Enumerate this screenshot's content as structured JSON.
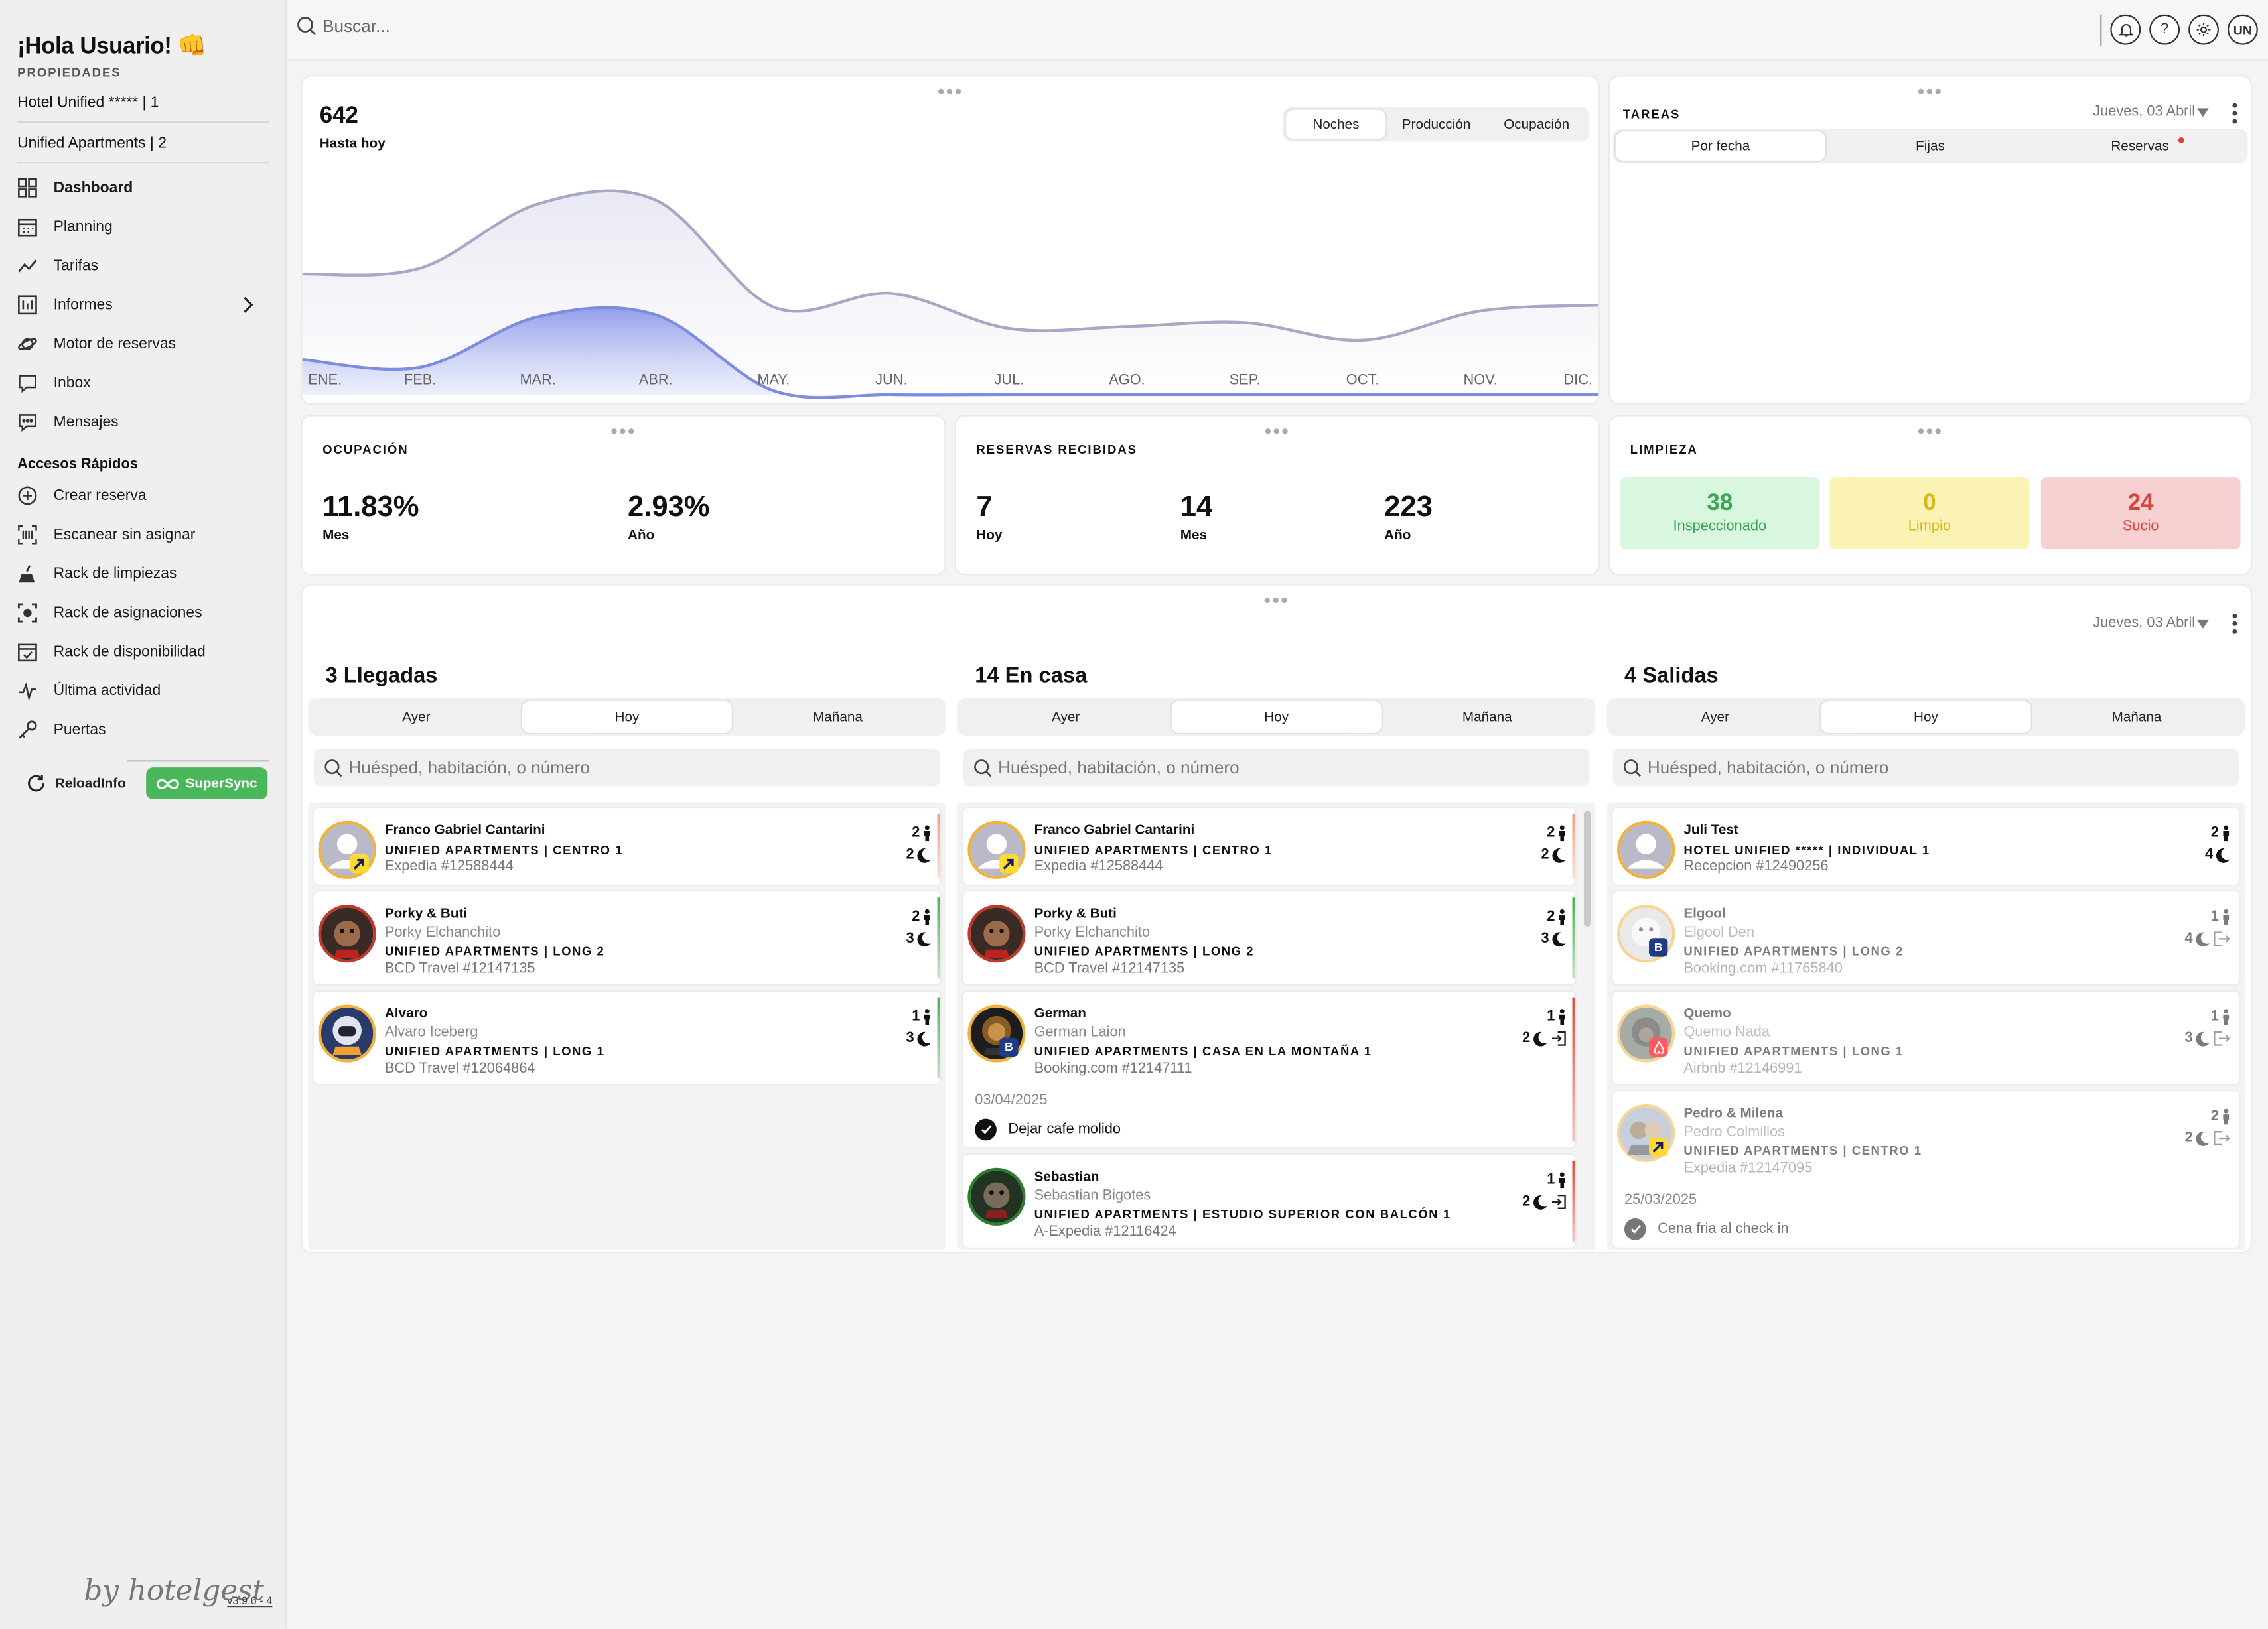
{
  "sidebar": {
    "greeting": "¡Hola Usuario! 👊",
    "properties_title": "PROPIEDADES",
    "properties": [
      "Hotel Unified ***** | 1",
      "Unified Apartments | 2"
    ],
    "nav": [
      {
        "label": "Dashboard",
        "icon": "grid-icon",
        "active": true
      },
      {
        "label": "Planning",
        "icon": "calendar-icon"
      },
      {
        "label": "Tarifas",
        "icon": "trend-icon"
      },
      {
        "label": "Informes",
        "icon": "report-icon"
      },
      {
        "label": "Motor de reservas",
        "icon": "planet-icon"
      },
      {
        "label": "Inbox",
        "icon": "inbox-icon"
      },
      {
        "label": "Mensajes",
        "icon": "chat-icon"
      }
    ],
    "quick_title": "Accesos Rápidos",
    "quick": [
      {
        "label": "Crear reserva",
        "icon": "plus-circle-icon"
      },
      {
        "label": "Escanear sin asignar",
        "icon": "barcode-icon"
      },
      {
        "label": "Rack de limpiezas",
        "icon": "broom-icon"
      },
      {
        "label": "Rack de asignaciones",
        "icon": "focus-icon"
      },
      {
        "label": "Rack de disponibilidad",
        "icon": "calendar-check-icon"
      },
      {
        "label": "Última actividad",
        "icon": "activity-icon"
      },
      {
        "label": "Puertas",
        "icon": "key-icon"
      }
    ],
    "reload_label": "ReloadInfo",
    "sync_label": "SuperSync",
    "brand": "by hotelgest",
    "version": "v3.9.6 - 4"
  },
  "topbar": {
    "search_placeholder": "Buscar...",
    "user_initials": "UN",
    "help_glyph": "?"
  },
  "chart": {
    "total": "642",
    "total_label": "Hasta hoy",
    "tabs": [
      "Noches",
      "Producción",
      "Ocupación"
    ],
    "selected_tab": "Noches"
  },
  "chart_data": {
    "type": "area",
    "categories": [
      "ENE.",
      "FEB.",
      "MAR.",
      "ABR.",
      "MAY.",
      "JUN.",
      "JUL.",
      "AGO.",
      "SEP.",
      "OCT.",
      "NOV.",
      "DIC."
    ],
    "series": [
      {
        "values": [
          62,
          65,
          98,
          100,
          45,
          52,
          34,
          35,
          37,
          28,
          43,
          46
        ],
        "color": "#a7a7c6"
      },
      {
        "values": [
          18,
          14,
          40,
          41,
          2,
          0,
          0,
          0,
          0,
          0,
          0,
          0
        ],
        "color": "#7c8ce0"
      }
    ],
    "ylim": [
      0,
      110
    ]
  },
  "tasks": {
    "title": "TAREAS",
    "date": "Jueves, 03 Abril",
    "tabs": [
      "Por fecha",
      "Fijas",
      "Reservas"
    ],
    "selected_tab": "Por fecha"
  },
  "occupancy": {
    "title": "OCUPACIÓN",
    "items": [
      {
        "value": "11.83%",
        "label": "Mes"
      },
      {
        "value": "2.93%",
        "label": "Año"
      }
    ]
  },
  "bookings": {
    "title": "RESERVAS RECIBIDAS",
    "items": [
      {
        "value": "7",
        "label": "Hoy"
      },
      {
        "value": "14",
        "label": "Mes"
      },
      {
        "value": "223",
        "label": "Año"
      }
    ]
  },
  "cleaning": {
    "title": "LIMPIEZA",
    "items": [
      {
        "value": "38",
        "label": "Inspeccionado",
        "bg": "#d9f6de",
        "fg": "#3aa557"
      },
      {
        "value": "0",
        "label": "Limpio",
        "bg": "#fbf3b4",
        "fg": "#d4b81a"
      },
      {
        "value": "24",
        "label": "Sucio",
        "bg": "#f7d1d1",
        "fg": "#d9433c"
      }
    ]
  },
  "movements": {
    "date": "Jueves, 03 Abril",
    "day_tabs": [
      "Ayer",
      "Hoy",
      "Mañana"
    ],
    "search_placeholder": "Huésped, habitación, o número",
    "columns": [
      {
        "title": "3 Llegadas",
        "guests": [
          {
            "name": "Franco Gabriel Cantarini",
            "sub": "",
            "room": "UNIFIED APARTMENTS | CENTRO 1",
            "source": "Expedia #12588444",
            "pax": "2",
            "nights": "2",
            "avatar": "default-avatar",
            "badge": "expedia-badge",
            "edge": "#f1a07a"
          },
          {
            "name": "Porky & Buti",
            "sub": "Porky Elchanchito",
            "room": "UNIFIED APARTMENTS | LONG 2",
            "source": "BCD Travel #12147135",
            "pax": "2",
            "nights": "3",
            "avatar": "dog-avatar",
            "badge": "",
            "edge": "#4caf50"
          },
          {
            "name": "Alvaro",
            "sub": "Alvaro Iceberg",
            "room": "UNIFIED APARTMENTS | LONG 1",
            "source": "BCD Travel #12064864",
            "pax": "1",
            "nights": "3",
            "avatar": "astronaut-avatar",
            "badge": "",
            "edge": "#4caf50"
          }
        ]
      },
      {
        "title": "14 En casa",
        "guests": [
          {
            "name": "Franco Gabriel Cantarini",
            "sub": "",
            "room": "UNIFIED APARTMENTS | CENTRO 1",
            "source": "Expedia #12588444",
            "pax": "2",
            "nights": "2",
            "avatar": "default-avatar",
            "badge": "expedia-badge",
            "edge": "#f1a07a"
          },
          {
            "name": "Porky & Buti",
            "sub": "Porky Elchanchito",
            "room": "UNIFIED APARTMENTS | LONG 2",
            "source": "BCD Travel #12147135",
            "pax": "2",
            "nights": "3",
            "avatar": "dog-avatar",
            "badge": "",
            "edge": "#4caf50"
          },
          {
            "name": "German",
            "sub": "German Laion",
            "room": "UNIFIED APARTMENTS | CASA EN LA MONTAÑA 1",
            "source": "Booking.com #12147111",
            "pax": "1",
            "nights": "2",
            "avatar": "lion-avatar",
            "badge": "booking-badge",
            "edge": "#e24c3f",
            "note_date": "03/04/2025",
            "note": "Dejar cafe molido"
          },
          {
            "name": "Sebastian",
            "sub": "Sebastian Bigotes",
            "room": "UNIFIED APARTMENTS | ESTUDIO SUPERIOR CON BALCÓN 1",
            "source": "A-Expedia #12116424",
            "pax": "1",
            "nights": "2",
            "avatar": "cat-avatar",
            "badge": "",
            "edge": "#e24c3f"
          }
        ]
      },
      {
        "title": "4 Salidas",
        "guests": [
          {
            "name": "Juli Test",
            "sub": "",
            "room": "HOTEL UNIFIED ***** | INDIVIDUAL 1",
            "source": "Recepcion #12490256",
            "pax": "2",
            "nights": "4",
            "avatar": "default-avatar",
            "badge": "",
            "edge": ""
          },
          {
            "name": "Elgool",
            "sub": "Elgool Den",
            "room": "UNIFIED APARTMENTS | LONG 2",
            "source": "Booking.com #11765840",
            "pax": "1",
            "nights": "4",
            "avatar": "bear-avatar",
            "badge": "booking-badge",
            "edge": "",
            "faded": true
          },
          {
            "name": "Quemo",
            "sub": "Quemo Nada",
            "room": "UNIFIED APARTMENTS | LONG 1",
            "source": "Airbnb #12146991",
            "pax": "1",
            "nights": "3",
            "avatar": "gorilla-avatar",
            "badge": "airbnb-badge",
            "edge": "",
            "faded": true
          },
          {
            "name": "Pedro & Milena",
            "sub": "Pedro Colmillos",
            "room": "UNIFIED APARTMENTS | CENTRO 1",
            "source": "Expedia #12147095",
            "pax": "2",
            "nights": "2",
            "avatar": "couple-avatar",
            "badge": "expedia-badge",
            "edge": "",
            "faded": true,
            "note_date": "25/03/2025",
            "note": "Cena fria al check in"
          }
        ]
      }
    ]
  },
  "colors": {
    "accent_green": "#4ab75a",
    "chart_line": "#a7a7c6",
    "chart_fill": "#7c8ce0",
    "notif_red": "#e53935"
  }
}
